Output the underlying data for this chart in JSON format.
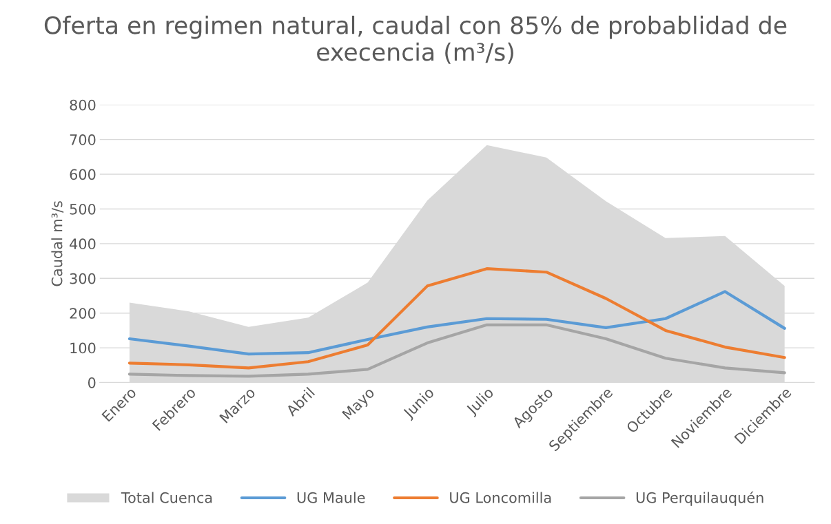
{
  "chart_data": {
    "type": "line",
    "title": "Oferta en regimen natural, caudal con 85% de probablidad de execencia (m³/s)",
    "ylabel": "Caudal m³/s",
    "categories": [
      "Enero",
      "Febrero",
      "Marzo",
      "Abril",
      "Mayo",
      "Junio",
      "Julio",
      "Agosto",
      "Septiembre",
      "Octubre",
      "Noviembre",
      "Diciembre"
    ],
    "series": [
      {
        "name": "Total Cuenca",
        "type": "area",
        "color": "#d9d9d9",
        "values": [
          230,
          205,
          160,
          187,
          288,
          524,
          684,
          648,
          522,
          416,
          422,
          278
        ]
      },
      {
        "name": "UG Maule",
        "color": "#5b9bd5",
        "values": [
          126,
          105,
          82,
          86,
          124,
          160,
          184,
          182,
          158,
          184,
          262,
          156
        ]
      },
      {
        "name": "UG Loncomilla",
        "color": "#ed7d31",
        "values": [
          56,
          51,
          42,
          60,
          108,
          278,
          328,
          318,
          242,
          150,
          102,
          72
        ]
      },
      {
        "name": "UG Perquilauquén",
        "color": "#a5a5a5",
        "values": [
          24,
          20,
          18,
          24,
          38,
          114,
          166,
          166,
          126,
          70,
          42,
          28
        ]
      }
    ],
    "ylim": [
      0,
      800
    ],
    "yticks": [
      0,
      100,
      200,
      300,
      400,
      500,
      600,
      700,
      800
    ],
    "grid": "y",
    "legend": "bottom",
    "marker": "none",
    "line_style": "solid"
  }
}
